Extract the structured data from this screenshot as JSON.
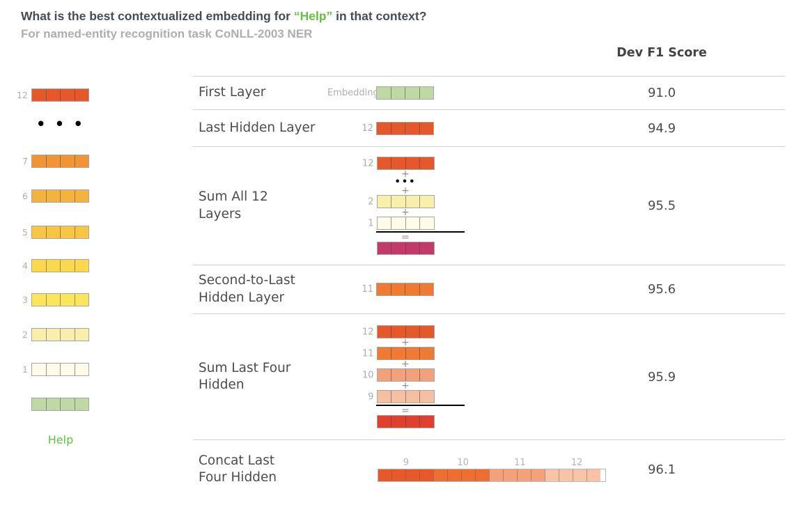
{
  "title": {
    "pre": "What is the best contextualized embedding for ",
    "highlight": "“Help”",
    "post": " in that context?"
  },
  "subtitle": "For named-entity recognition task CoNLL-2003 NER",
  "score_header": "Dev F1 Score",
  "word_label": "Help",
  "symbols": {
    "plus": "+",
    "equals": "=",
    "dots_small": "•••",
    "dots_big": "• • •"
  },
  "colors": {
    "layer12": "#e4582a",
    "layer11": "#ee7a33",
    "layer10": "#f2a17b",
    "layer9": "#f6bfa0",
    "layer7": "#f29434",
    "layer6": "#f4b33c",
    "layer5": "#f8c642",
    "layer4": "#fbd94b",
    "layer3": "#fae55c",
    "layer2": "#f8f0aa",
    "layer1": "#fdfbe8",
    "embedding": "#bed9a4",
    "sum_all_result": "#c13a69",
    "sum_four_result": "#e2402f",
    "concat_g9": "#e7582b",
    "concat_g10": "#ec6f31",
    "concat_g11": "#f4a078",
    "concat_g12": "#f8c3a6",
    "highlight_green": "#62c33e"
  },
  "left_stack": {
    "items": [
      {
        "type": "vec",
        "label": "12",
        "color": "layer12"
      },
      {
        "type": "dots",
        "label": ""
      },
      {
        "type": "vec",
        "label": "7",
        "color": "layer7"
      },
      {
        "type": "vec",
        "label": "6",
        "color": "layer6"
      },
      {
        "type": "vec",
        "label": "5",
        "color": "layer5"
      },
      {
        "type": "vec",
        "label": "4",
        "color": "layer4"
      },
      {
        "type": "vec",
        "label": "3",
        "color": "layer3"
      },
      {
        "type": "vec",
        "label": "2",
        "color": "layer2"
      },
      {
        "type": "vec",
        "label": "1",
        "color": "layer1"
      },
      {
        "type": "vec",
        "label": "",
        "color": "embedding"
      }
    ]
  },
  "rows": [
    {
      "label_lines": [
        "First Layer"
      ],
      "score": "91.0",
      "art": {
        "kind": "single",
        "tag": "Embedding",
        "color": "embedding"
      }
    },
    {
      "label_lines": [
        "Last Hidden Layer"
      ],
      "score": "94.9",
      "art": {
        "kind": "single",
        "tag": "12",
        "color": "layer12"
      }
    },
    {
      "label_lines": [
        "Sum All 12",
        "Layers"
      ],
      "score": "95.5",
      "art": {
        "kind": "sum",
        "items": [
          {
            "t": "vec",
            "tag": "12",
            "color": "layer12"
          },
          {
            "t": "plus"
          },
          {
            "t": "dots"
          },
          {
            "t": "plus"
          },
          {
            "t": "vec",
            "tag": "2",
            "color": "layer2"
          },
          {
            "t": "plus"
          },
          {
            "t": "vec",
            "tag": "1",
            "color": "layer1"
          },
          {
            "t": "line"
          },
          {
            "t": "equals"
          },
          {
            "t": "vec",
            "tag": "",
            "color": "sum_all_result"
          }
        ]
      }
    },
    {
      "label_lines": [
        "Second-to-Last",
        "Hidden Layer"
      ],
      "score": "95.6",
      "art": {
        "kind": "single",
        "tag": "11",
        "color": "layer11"
      }
    },
    {
      "label_lines": [
        "Sum Last Four",
        "Hidden"
      ],
      "score": "95.9",
      "art": {
        "kind": "sum",
        "items": [
          {
            "t": "vec",
            "tag": "12",
            "color": "layer12"
          },
          {
            "t": "plus"
          },
          {
            "t": "vec",
            "tag": "11",
            "color": "layer11"
          },
          {
            "t": "plus"
          },
          {
            "t": "vec",
            "tag": "10",
            "color": "layer10"
          },
          {
            "t": "plus"
          },
          {
            "t": "vec",
            "tag": "9",
            "color": "layer9"
          },
          {
            "t": "line"
          },
          {
            "t": "equals"
          },
          {
            "t": "vec",
            "tag": "",
            "color": "sum_four_result"
          }
        ]
      }
    },
    {
      "label_lines": [
        "Concat Last",
        "Four Hidden"
      ],
      "score": "96.1",
      "art": {
        "kind": "concat",
        "cells_per_group": 4,
        "groups": [
          {
            "tag": "9",
            "color": "concat_g9"
          },
          {
            "tag": "10",
            "color": "concat_g10"
          },
          {
            "tag": "11",
            "color": "concat_g11"
          },
          {
            "tag": "12",
            "color": "concat_g12"
          }
        ]
      }
    }
  ]
}
